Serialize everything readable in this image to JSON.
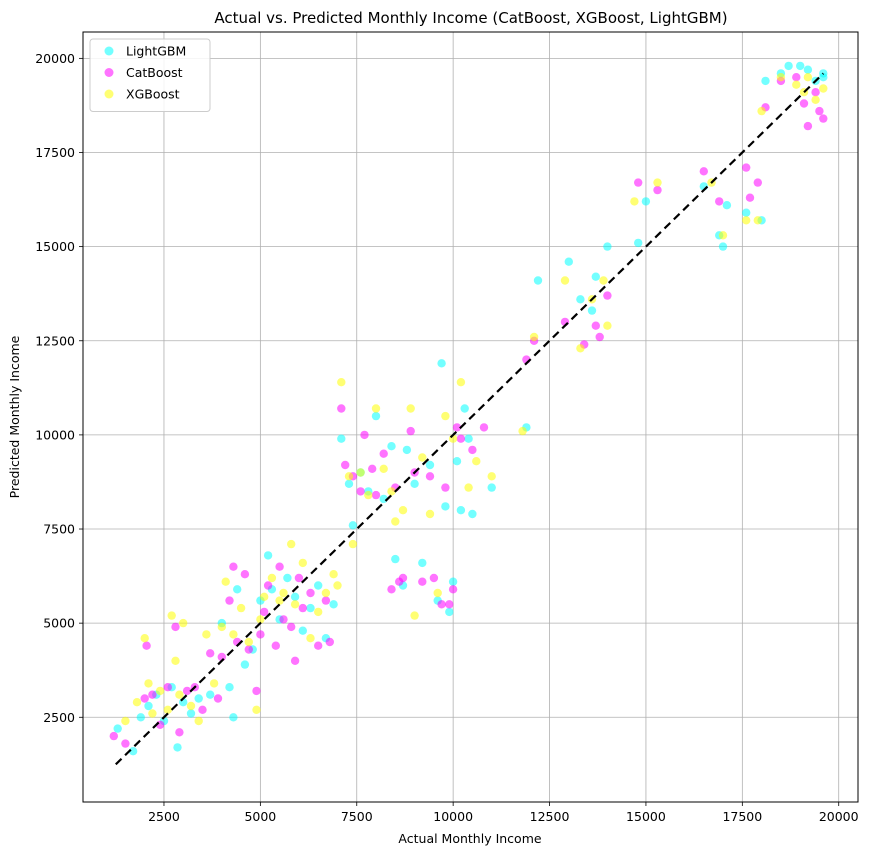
{
  "chart_data": {
    "type": "scatter",
    "title": "Actual vs. Predicted Monthly Income (CatBoost, XGBoost, LightGBM)",
    "xlabel": "Actual Monthly Income",
    "ylabel": "Predicted Monthly Income",
    "xlim": [
      400,
      20500
    ],
    "ylim": [
      250,
      20700
    ],
    "xticks": [
      2500,
      5000,
      7500,
      10000,
      12500,
      15000,
      17500,
      20000
    ],
    "yticks": [
      2500,
      5000,
      7500,
      10000,
      12500,
      15000,
      17500,
      20000
    ],
    "grid": true,
    "legend_position": "top-left",
    "reference_line": {
      "style": "dashed",
      "color": "#000000",
      "x": [
        1250,
        19600
      ],
      "y": [
        1250,
        19600
      ]
    },
    "series": [
      {
        "name": "LightGBM",
        "color": "#00ffff",
        "points": [
          [
            1300,
            2200
          ],
          [
            1700,
            1600
          ],
          [
            1900,
            2500
          ],
          [
            2100,
            2800
          ],
          [
            2300,
            3100
          ],
          [
            2500,
            2400
          ],
          [
            2700,
            3300
          ],
          [
            2850,
            1700
          ],
          [
            3000,
            2900
          ],
          [
            3200,
            2600
          ],
          [
            3400,
            3000
          ],
          [
            3700,
            3100
          ],
          [
            4000,
            5000
          ],
          [
            4200,
            3300
          ],
          [
            4300,
            2500
          ],
          [
            4400,
            5900
          ],
          [
            4600,
            3900
          ],
          [
            4800,
            4300
          ],
          [
            5000,
            5600
          ],
          [
            5200,
            6800
          ],
          [
            5300,
            5900
          ],
          [
            5500,
            5100
          ],
          [
            5700,
            6200
          ],
          [
            5900,
            5700
          ],
          [
            6100,
            4800
          ],
          [
            6300,
            5400
          ],
          [
            6500,
            6000
          ],
          [
            6700,
            4600
          ],
          [
            6900,
            5500
          ],
          [
            7100,
            9900
          ],
          [
            7300,
            8700
          ],
          [
            7400,
            7600
          ],
          [
            7600,
            9000
          ],
          [
            7800,
            8500
          ],
          [
            8000,
            10500
          ],
          [
            8200,
            8300
          ],
          [
            8400,
            9700
          ],
          [
            8500,
            6700
          ],
          [
            8700,
            6000
          ],
          [
            8800,
            9600
          ],
          [
            9000,
            8700
          ],
          [
            9200,
            6600
          ],
          [
            9400,
            9200
          ],
          [
            9600,
            5600
          ],
          [
            9700,
            11900
          ],
          [
            9800,
            8100
          ],
          [
            9900,
            5300
          ],
          [
            10000,
            6100
          ],
          [
            10100,
            9300
          ],
          [
            10200,
            8000
          ],
          [
            10300,
            10700
          ],
          [
            10500,
            7900
          ],
          [
            10400,
            9900
          ],
          [
            11000,
            8600
          ],
          [
            11900,
            10200
          ],
          [
            12200,
            14100
          ],
          [
            13000,
            14600
          ],
          [
            13300,
            13600
          ],
          [
            13600,
            13300
          ],
          [
            13700,
            14200
          ],
          [
            14000,
            15000
          ],
          [
            14800,
            15100
          ],
          [
            15000,
            16200
          ],
          [
            16500,
            16600
          ],
          [
            16900,
            15300
          ],
          [
            17000,
            15000
          ],
          [
            17100,
            16100
          ],
          [
            17600,
            15900
          ],
          [
            18000,
            15700
          ],
          [
            18100,
            19400
          ],
          [
            18500,
            19600
          ],
          [
            18700,
            19800
          ],
          [
            19000,
            19800
          ],
          [
            19200,
            19700
          ],
          [
            19400,
            19400
          ],
          [
            19600,
            19600
          ],
          [
            19600,
            19500
          ]
        ]
      },
      {
        "name": "CatBoost",
        "color": "#ff00ff",
        "points": [
          [
            1200,
            2000
          ],
          [
            1500,
            1800
          ],
          [
            2000,
            3000
          ],
          [
            2050,
            4400
          ],
          [
            2200,
            3100
          ],
          [
            2400,
            2300
          ],
          [
            2600,
            3300
          ],
          [
            2800,
            4900
          ],
          [
            2900,
            2100
          ],
          [
            3100,
            3200
          ],
          [
            3300,
            3300
          ],
          [
            3500,
            2700
          ],
          [
            3700,
            4200
          ],
          [
            3900,
            3000
          ],
          [
            4000,
            4100
          ],
          [
            4200,
            5600
          ],
          [
            4300,
            6500
          ],
          [
            4400,
            4500
          ],
          [
            4600,
            6300
          ],
          [
            4700,
            4300
          ],
          [
            4900,
            3200
          ],
          [
            5000,
            4700
          ],
          [
            5100,
            5300
          ],
          [
            5200,
            6000
          ],
          [
            5400,
            4400
          ],
          [
            5500,
            6500
          ],
          [
            5600,
            5100
          ],
          [
            5800,
            4900
          ],
          [
            5900,
            4000
          ],
          [
            6000,
            6200
          ],
          [
            6100,
            5400
          ],
          [
            6300,
            5800
          ],
          [
            6500,
            4400
          ],
          [
            6700,
            5600
          ],
          [
            6800,
            4500
          ],
          [
            7100,
            10700
          ],
          [
            7200,
            9200
          ],
          [
            7400,
            8900
          ],
          [
            7600,
            8500
          ],
          [
            7700,
            10000
          ],
          [
            7900,
            9100
          ],
          [
            8000,
            8400
          ],
          [
            8200,
            9500
          ],
          [
            8400,
            5900
          ],
          [
            8500,
            8600
          ],
          [
            8600,
            6100
          ],
          [
            8700,
            6200
          ],
          [
            8900,
            10100
          ],
          [
            9000,
            9000
          ],
          [
            9200,
            6100
          ],
          [
            9400,
            8900
          ],
          [
            9500,
            6200
          ],
          [
            9700,
            5500
          ],
          [
            9800,
            8600
          ],
          [
            9900,
            5500
          ],
          [
            10000,
            5900
          ],
          [
            10100,
            10200
          ],
          [
            10200,
            9900
          ],
          [
            10500,
            9600
          ],
          [
            10800,
            10200
          ],
          [
            11900,
            12000
          ],
          [
            12100,
            12500
          ],
          [
            12900,
            13000
          ],
          [
            13400,
            12400
          ],
          [
            13700,
            12900
          ],
          [
            13800,
            12600
          ],
          [
            14000,
            13700
          ],
          [
            14800,
            16700
          ],
          [
            15300,
            16500
          ],
          [
            16500,
            17000
          ],
          [
            16900,
            16200
          ],
          [
            17600,
            17100
          ],
          [
            17700,
            16300
          ],
          [
            17900,
            16700
          ],
          [
            18100,
            18700
          ],
          [
            18500,
            19400
          ],
          [
            18900,
            19500
          ],
          [
            19100,
            18800
          ],
          [
            19200,
            18200
          ],
          [
            19400,
            19100
          ],
          [
            19500,
            18600
          ],
          [
            19600,
            18400
          ]
        ]
      },
      {
        "name": "XGBoost",
        "color": "#ffff00",
        "points": [
          [
            1500,
            2400
          ],
          [
            1800,
            2900
          ],
          [
            2000,
            4600
          ],
          [
            2100,
            3400
          ],
          [
            2200,
            2600
          ],
          [
            2400,
            3200
          ],
          [
            2600,
            2700
          ],
          [
            2700,
            5200
          ],
          [
            2800,
            4000
          ],
          [
            2900,
            3100
          ],
          [
            3000,
            5000
          ],
          [
            3200,
            2800
          ],
          [
            3400,
            2400
          ],
          [
            3600,
            4700
          ],
          [
            3800,
            3400
          ],
          [
            4000,
            4900
          ],
          [
            4100,
            6100
          ],
          [
            4300,
            4700
          ],
          [
            4500,
            5400
          ],
          [
            4700,
            4500
          ],
          [
            4900,
            2700
          ],
          [
            5000,
            5100
          ],
          [
            5100,
            5700
          ],
          [
            5300,
            6200
          ],
          [
            5500,
            5600
          ],
          [
            5600,
            5800
          ],
          [
            5800,
            7100
          ],
          [
            5900,
            5500
          ],
          [
            6100,
            6600
          ],
          [
            6300,
            4600
          ],
          [
            6500,
            5300
          ],
          [
            6700,
            5800
          ],
          [
            6900,
            6300
          ],
          [
            7000,
            6000
          ],
          [
            7100,
            11400
          ],
          [
            7300,
            8900
          ],
          [
            7400,
            7100
          ],
          [
            7600,
            9000
          ],
          [
            7800,
            8400
          ],
          [
            8000,
            10700
          ],
          [
            8200,
            9100
          ],
          [
            8400,
            8500
          ],
          [
            8500,
            7700
          ],
          [
            8700,
            8000
          ],
          [
            8900,
            10700
          ],
          [
            9000,
            5200
          ],
          [
            9200,
            9400
          ],
          [
            9400,
            7900
          ],
          [
            9600,
            5800
          ],
          [
            9800,
            10500
          ],
          [
            10000,
            9900
          ],
          [
            10200,
            11400
          ],
          [
            10400,
            8600
          ],
          [
            10600,
            9300
          ],
          [
            11000,
            8900
          ],
          [
            11800,
            10100
          ],
          [
            12100,
            12600
          ],
          [
            12900,
            14100
          ],
          [
            13300,
            12300
          ],
          [
            13600,
            13600
          ],
          [
            13900,
            14100
          ],
          [
            14000,
            12900
          ],
          [
            14700,
            16200
          ],
          [
            15300,
            16700
          ],
          [
            16700,
            16700
          ],
          [
            17000,
            15300
          ],
          [
            17600,
            15700
          ],
          [
            17900,
            15700
          ],
          [
            18000,
            18600
          ],
          [
            18500,
            19500
          ],
          [
            18900,
            19300
          ],
          [
            19100,
            19100
          ],
          [
            19200,
            19500
          ],
          [
            19400,
            18900
          ],
          [
            19600,
            19200
          ]
        ]
      }
    ]
  }
}
